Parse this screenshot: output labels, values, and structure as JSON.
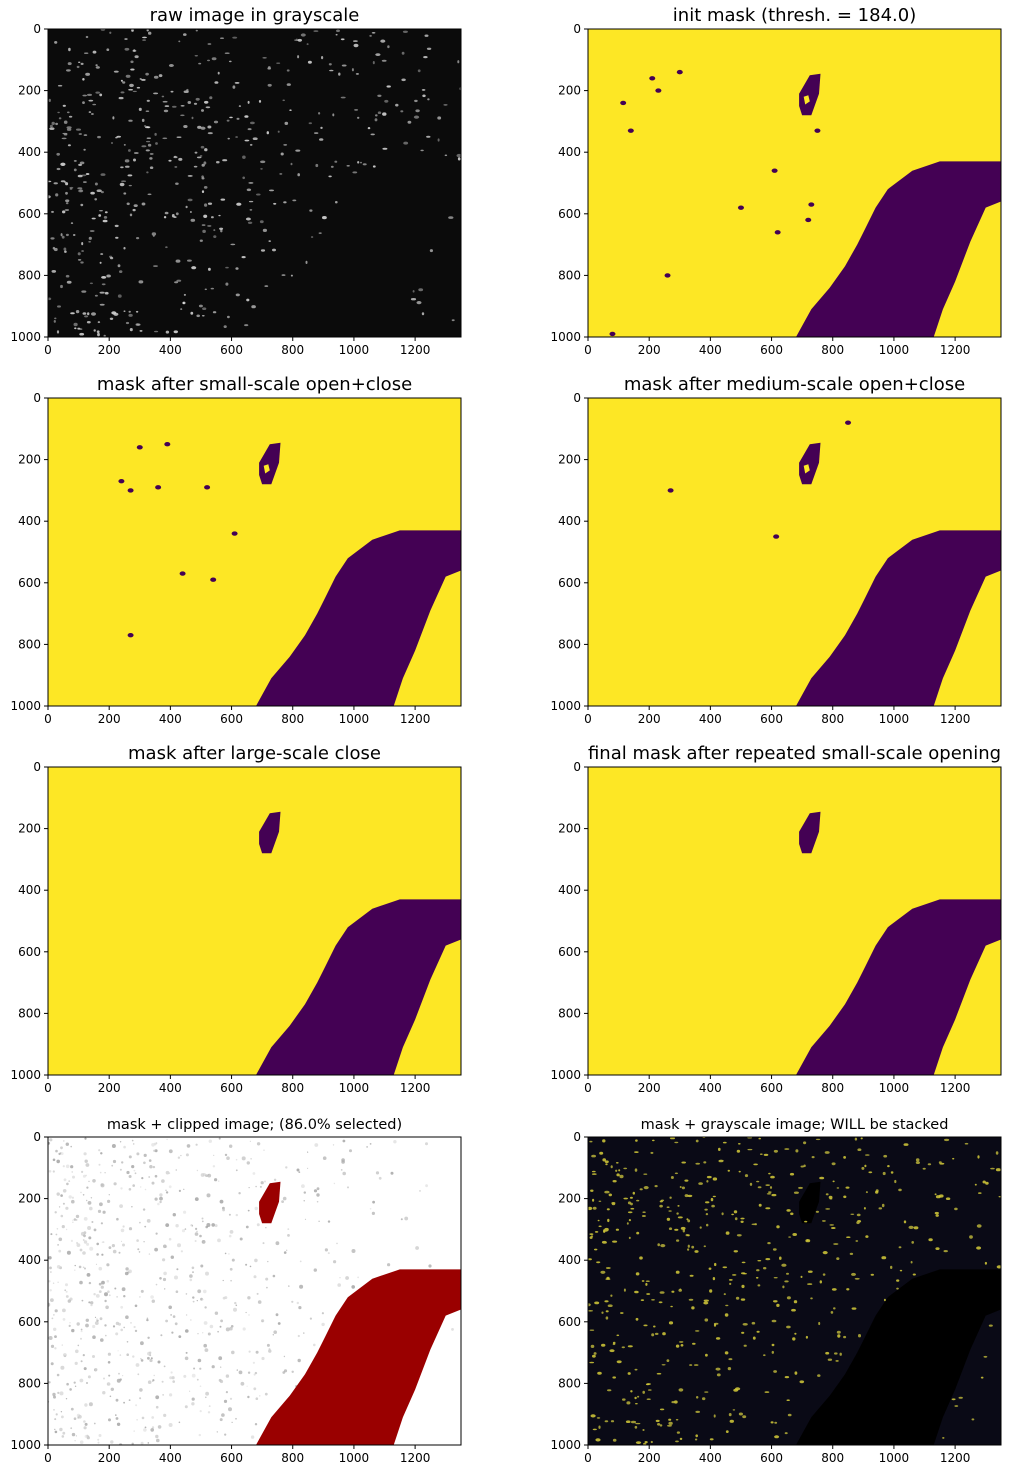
{
  "figure": {
    "rows": 4,
    "cols": 2
  },
  "colors": {
    "mask_on": "#fde725",
    "mask_off": "#440154",
    "clip_red": "#9a0000",
    "nuclei_dark_bg": "#0a0a16",
    "nuclei_dim": "#b8b13a"
  },
  "chart_data": [
    {
      "type": "image",
      "title": "raw image in grayscale",
      "kind": "raw",
      "xlim": [
        0,
        1350
      ],
      "ylim": [
        1000,
        0
      ],
      "xticks": [
        0,
        200,
        400,
        600,
        800,
        1000,
        1200
      ],
      "yticks": [
        0,
        200,
        400,
        600,
        800,
        1000
      ],
      "xtick_labels": [
        "0",
        "200",
        "400",
        "600",
        "800",
        "1000",
        "1200"
      ],
      "ytick_labels": [
        "0",
        "200",
        "400",
        "600",
        "800",
        "1000"
      ]
    },
    {
      "type": "image",
      "title": "init mask (thresh. = 184.0)",
      "kind": "mask",
      "stage": 0,
      "xlim": [
        0,
        1350
      ],
      "ylim": [
        1000,
        0
      ],
      "xticks": [
        0,
        200,
        400,
        600,
        800,
        1000,
        1200
      ],
      "yticks": [
        0,
        200,
        400,
        600,
        800,
        1000
      ],
      "xtick_labels": [
        "0",
        "200",
        "400",
        "600",
        "800",
        "1000",
        "1200"
      ],
      "ytick_labels": [
        "0",
        "200",
        "400",
        "600",
        "800",
        "1000"
      ]
    },
    {
      "type": "image",
      "title": "mask after small-scale open+close",
      "kind": "mask",
      "stage": 1,
      "xlim": [
        0,
        1350
      ],
      "ylim": [
        1000,
        0
      ],
      "xticks": [
        0,
        200,
        400,
        600,
        800,
        1000,
        1200
      ],
      "yticks": [
        0,
        200,
        400,
        600,
        800,
        1000
      ],
      "xtick_labels": [
        "0",
        "200",
        "400",
        "600",
        "800",
        "1000",
        "1200"
      ],
      "ytick_labels": [
        "0",
        "200",
        "400",
        "600",
        "800",
        "1000"
      ]
    },
    {
      "type": "image",
      "title": "mask after medium-scale open+close",
      "kind": "mask",
      "stage": 2,
      "xlim": [
        0,
        1350
      ],
      "ylim": [
        1000,
        0
      ],
      "xticks": [
        0,
        200,
        400,
        600,
        800,
        1000,
        1200
      ],
      "yticks": [
        0,
        200,
        400,
        600,
        800,
        1000
      ],
      "xtick_labels": [
        "0",
        "200",
        "400",
        "600",
        "800",
        "1000",
        "1200"
      ],
      "ytick_labels": [
        "0",
        "200",
        "400",
        "600",
        "800",
        "1000"
      ]
    },
    {
      "type": "image",
      "title": "mask after large-scale close",
      "kind": "mask",
      "stage": 3,
      "xlim": [
        0,
        1350
      ],
      "ylim": [
        1000,
        0
      ],
      "xticks": [
        0,
        200,
        400,
        600,
        800,
        1000,
        1200
      ],
      "yticks": [
        0,
        200,
        400,
        600,
        800,
        1000
      ],
      "xtick_labels": [
        "0",
        "200",
        "400",
        "600",
        "800",
        "1000",
        "1200"
      ],
      "ytick_labels": [
        "0",
        "200",
        "400",
        "600",
        "800",
        "1000"
      ]
    },
    {
      "type": "image",
      "title": "final mask after repeated small-scale opening",
      "kind": "mask",
      "stage": 4,
      "xlim": [
        0,
        1350
      ],
      "ylim": [
        1000,
        0
      ],
      "xticks": [
        0,
        200,
        400,
        600,
        800,
        1000,
        1200
      ],
      "yticks": [
        0,
        200,
        400,
        600,
        800,
        1000
      ],
      "xtick_labels": [
        "0",
        "200",
        "400",
        "600",
        "800",
        "1000",
        "1200"
      ],
      "ytick_labels": [
        "0",
        "200",
        "400",
        "600",
        "800",
        "1000"
      ]
    },
    {
      "type": "image",
      "title": "mask + clipped image; (86.0% selected)",
      "kind": "clipped",
      "selected_percent": 86.0,
      "xlim": [
        0,
        1350
      ],
      "ylim": [
        1000,
        0
      ],
      "xticks": [
        0,
        200,
        400,
        600,
        800,
        1000,
        1200
      ],
      "yticks": [
        0,
        200,
        400,
        600,
        800,
        1000
      ],
      "xtick_labels": [
        "0",
        "200",
        "400",
        "600",
        "800",
        "1000",
        "1200"
      ],
      "ytick_labels": [
        "0",
        "200",
        "400",
        "600",
        "800",
        "1000"
      ]
    },
    {
      "type": "image",
      "title": "mask + grayscale image; WILL be stacked",
      "kind": "overlay",
      "xlim": [
        0,
        1350
      ],
      "ylim": [
        1000,
        0
      ],
      "xticks": [
        0,
        200,
        400,
        600,
        800,
        1000,
        1200
      ],
      "yticks": [
        0,
        200,
        400,
        600,
        800,
        1000
      ],
      "xtick_labels": [
        "0",
        "200",
        "400",
        "600",
        "800",
        "1000",
        "1200"
      ],
      "ytick_labels": [
        "0",
        "200",
        "400",
        "600",
        "800",
        "1000"
      ]
    }
  ],
  "regions": {
    "tissue_free_band": [
      [
        680,
        1000
      ],
      [
        730,
        910
      ],
      [
        790,
        840
      ],
      [
        840,
        770
      ],
      [
        880,
        700
      ],
      [
        905,
        650
      ],
      [
        940,
        580
      ],
      [
        980,
        520
      ],
      [
        1060,
        460
      ],
      [
        1150,
        430
      ],
      [
        1350,
        430
      ],
      [
        1350,
        560
      ],
      [
        1300,
        580
      ],
      [
        1250,
        690
      ],
      [
        1200,
        820
      ],
      [
        1160,
        910
      ],
      [
        1130,
        1000
      ]
    ],
    "vessel_hole": [
      [
        690,
        210
      ],
      [
        725,
        150
      ],
      [
        760,
        145
      ],
      [
        755,
        210
      ],
      [
        730,
        280
      ],
      [
        700,
        280
      ],
      [
        690,
        250
      ]
    ],
    "vessel_inner": [
      [
        705,
        220
      ],
      [
        720,
        215
      ],
      [
        725,
        235
      ],
      [
        710,
        245
      ]
    ],
    "small_holes_init": [
      [
        210,
        160
      ],
      [
        300,
        140
      ],
      [
        230,
        200
      ],
      [
        115,
        240
      ],
      [
        140,
        330
      ],
      [
        750,
        330
      ],
      [
        610,
        460
      ],
      [
        730,
        570
      ],
      [
        500,
        580
      ],
      [
        720,
        620
      ],
      [
        620,
        660
      ],
      [
        260,
        800
      ],
      [
        80,
        990
      ]
    ],
    "small_holes_small": [
      [
        300,
        160
      ],
      [
        390,
        150
      ],
      [
        240,
        270
      ],
      [
        270,
        300
      ],
      [
        360,
        290
      ],
      [
        520,
        290
      ],
      [
        610,
        440
      ],
      [
        440,
        570
      ],
      [
        540,
        590
      ],
      [
        270,
        770
      ]
    ],
    "small_holes_medium": [
      [
        270,
        300
      ],
      [
        615,
        450
      ],
      [
        850,
        80
      ]
    ]
  }
}
